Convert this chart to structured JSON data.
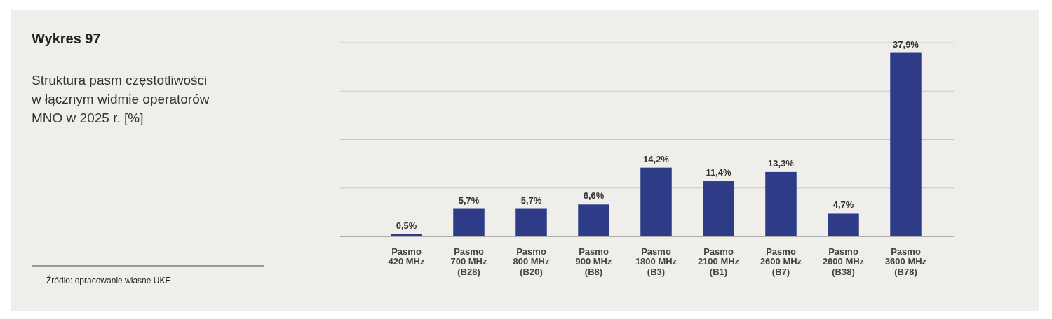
{
  "chart_data": {
    "type": "bar",
    "title": "Wykres 97",
    "subtitle": "Struktura pasm częstotliwości\nw łącznym widmie operatorów\nMNO w 2025 r. [%]",
    "annotations": [
      "Źródło: opracowanie własne UKE"
    ],
    "categories": [
      "Pasmo\n420 MHz",
      "Pasmo\n700 MHz\n(B28)",
      "Pasmo\n800 MHz\n(B20)",
      "Pasmo\n900 MHz\n(B8)",
      "Pasmo\n1800 MHz\n(B3)",
      "Pasmo\n2100 MHz\n(B1)",
      "Pasmo\n2600 MHz\n(B7)",
      "Pasmo\n2600 MHz\n(B38)",
      "Pasmo\n3600 MHz\n(B78)"
    ],
    "values": [
      0.5,
      5.7,
      5.7,
      6.6,
      14.2,
      11.4,
      13.3,
      4.7,
      37.9
    ],
    "value_labels": [
      "0,5%",
      "5,7%",
      "5,7%",
      "6,6%",
      "14,2%",
      "11,4%",
      "13,3%",
      "4,7%",
      "37,9%"
    ],
    "color": "#2e3b86",
    "ylim": [
      0,
      40
    ],
    "yticks": [
      {
        "value": 0,
        "label": null
      },
      {
        "value": 10,
        "label": null
      },
      {
        "value": 20,
        "label": null
      },
      {
        "value": 30,
        "label": null
      },
      {
        "value": 40,
        "label": null
      }
    ],
    "grid": "y",
    "tick_labels": "x"
  }
}
